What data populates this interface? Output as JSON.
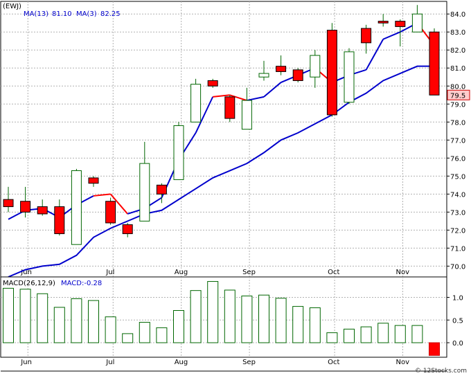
{
  "chart_data": [
    {
      "type": "candlestick",
      "symbol_label": "(EWJ)",
      "legend": [
        {
          "label": "MA(13)",
          "value": "81.10",
          "color": "#0000cc"
        },
        {
          "label": "MA(3)",
          "value": "82.25",
          "color": "#0000cc"
        }
      ],
      "last_price_label": "79.5",
      "x_tick_labels": [
        {
          "label": "Jun",
          "index": 1
        },
        {
          "label": "Jul",
          "index": 6
        },
        {
          "label": "Aug",
          "index": 10
        },
        {
          "label": "Sep",
          "index": 14
        },
        {
          "label": "Oct",
          "index": 19
        },
        {
          "label": "Nov",
          "index": 23
        }
      ],
      "y_ticks": [
        70.0,
        71.0,
        72.0,
        73.0,
        74.0,
        75.0,
        76.0,
        77.0,
        78.0,
        79.0,
        80.0,
        81.0,
        82.0,
        83.0,
        84.0
      ],
      "ylim": [
        69.4,
        84.7
      ],
      "grid": true,
      "colors": {
        "up": "#ffffff",
        "down": "#ff0000",
        "ma_line": "#0000cc",
        "ma_down": "#ff0000",
        "grid": "#b0b0b0"
      },
      "candles": [
        {
          "o": 73.7,
          "h": 74.4,
          "l": 73.0,
          "c": 73.3
        },
        {
          "o": 73.6,
          "h": 74.4,
          "l": 72.7,
          "c": 73.0
        },
        {
          "o": 73.3,
          "h": 73.7,
          "l": 72.8,
          "c": 72.9
        },
        {
          "o": 73.3,
          "h": 73.7,
          "l": 71.7,
          "c": 71.8
        },
        {
          "o": 71.2,
          "h": 75.4,
          "l": 71.2,
          "c": 75.3
        },
        {
          "o": 74.9,
          "h": 75.0,
          "l": 74.4,
          "c": 74.6
        },
        {
          "o": 73.6,
          "h": 73.8,
          "l": 72.3,
          "c": 72.4
        },
        {
          "o": 72.3,
          "h": 72.4,
          "l": 71.6,
          "c": 71.8
        },
        {
          "o": 72.5,
          "h": 76.9,
          "l": 72.5,
          "c": 75.7
        },
        {
          "o": 74.5,
          "h": 74.6,
          "l": 73.5,
          "c": 74.0
        },
        {
          "o": 74.8,
          "h": 78.0,
          "l": 74.8,
          "c": 77.8
        },
        {
          "o": 78.0,
          "h": 80.4,
          "l": 78.0,
          "c": 80.1
        },
        {
          "o": 80.3,
          "h": 80.4,
          "l": 79.9,
          "c": 80.0
        },
        {
          "o": 79.4,
          "h": 79.5,
          "l": 78.0,
          "c": 78.2
        },
        {
          "o": 77.6,
          "h": 79.9,
          "l": 77.6,
          "c": 79.2
        },
        {
          "o": 80.5,
          "h": 81.4,
          "l": 80.3,
          "c": 80.7
        },
        {
          "o": 81.1,
          "h": 81.7,
          "l": 80.6,
          "c": 80.8
        },
        {
          "o": 80.9,
          "h": 81.0,
          "l": 80.2,
          "c": 80.3
        },
        {
          "o": 80.5,
          "h": 82.0,
          "l": 79.9,
          "c": 81.7
        },
        {
          "o": 83.1,
          "h": 83.5,
          "l": 78.3,
          "c": 78.4
        },
        {
          "o": 79.1,
          "h": 82.1,
          "l": 79.0,
          "c": 81.9
        },
        {
          "o": 83.2,
          "h": 83.4,
          "l": 81.8,
          "c": 82.4
        },
        {
          "o": 83.6,
          "h": 84.0,
          "l": 83.3,
          "c": 83.5
        },
        {
          "o": 83.6,
          "h": 83.7,
          "l": 82.2,
          "c": 83.3
        },
        {
          "o": 83.0,
          "h": 84.5,
          "l": 83.0,
          "c": 84.0
        },
        {
          "o": 83.0,
          "h": 83.2,
          "l": 79.5,
          "c": 79.5
        }
      ],
      "ma13": [
        69.4,
        69.8,
        70.0,
        70.1,
        70.6,
        71.6,
        72.1,
        72.5,
        72.9,
        73.1,
        73.7,
        74.3,
        74.9,
        75.3,
        75.7,
        76.3,
        77.0,
        77.4,
        77.9,
        78.4,
        79.1,
        79.6,
        80.3,
        80.7,
        81.1,
        81.1
      ],
      "ma3": [
        72.6,
        73.1,
        73.2,
        72.7,
        73.4,
        73.9,
        74.0,
        72.9,
        73.2,
        73.8,
        75.9,
        77.4,
        79.4,
        79.5,
        79.2,
        79.4,
        80.2,
        80.6,
        81.0,
        80.2,
        80.6,
        80.9,
        82.6,
        83.0,
        83.5,
        82.25
      ],
      "ma3_red_segments": [
        5,
        6,
        12,
        13,
        18,
        24
      ]
    },
    {
      "type": "bar",
      "title_label": "MACD(26,12,9)",
      "value_label": "MACD:-0.28",
      "y_ticks": [
        0.0,
        0.5,
        1.0
      ],
      "ylim": [
        -0.32,
        1.45
      ],
      "values": [
        1.2,
        1.18,
        1.08,
        0.78,
        0.97,
        0.93,
        0.57,
        0.2,
        0.45,
        0.33,
        0.71,
        1.15,
        1.35,
        1.16,
        1.03,
        1.05,
        0.98,
        0.8,
        0.77,
        0.22,
        0.3,
        0.35,
        0.43,
        0.38,
        0.38,
        -0.28
      ]
    }
  ],
  "footer": {
    "credit": "© 12Stocks.com"
  }
}
